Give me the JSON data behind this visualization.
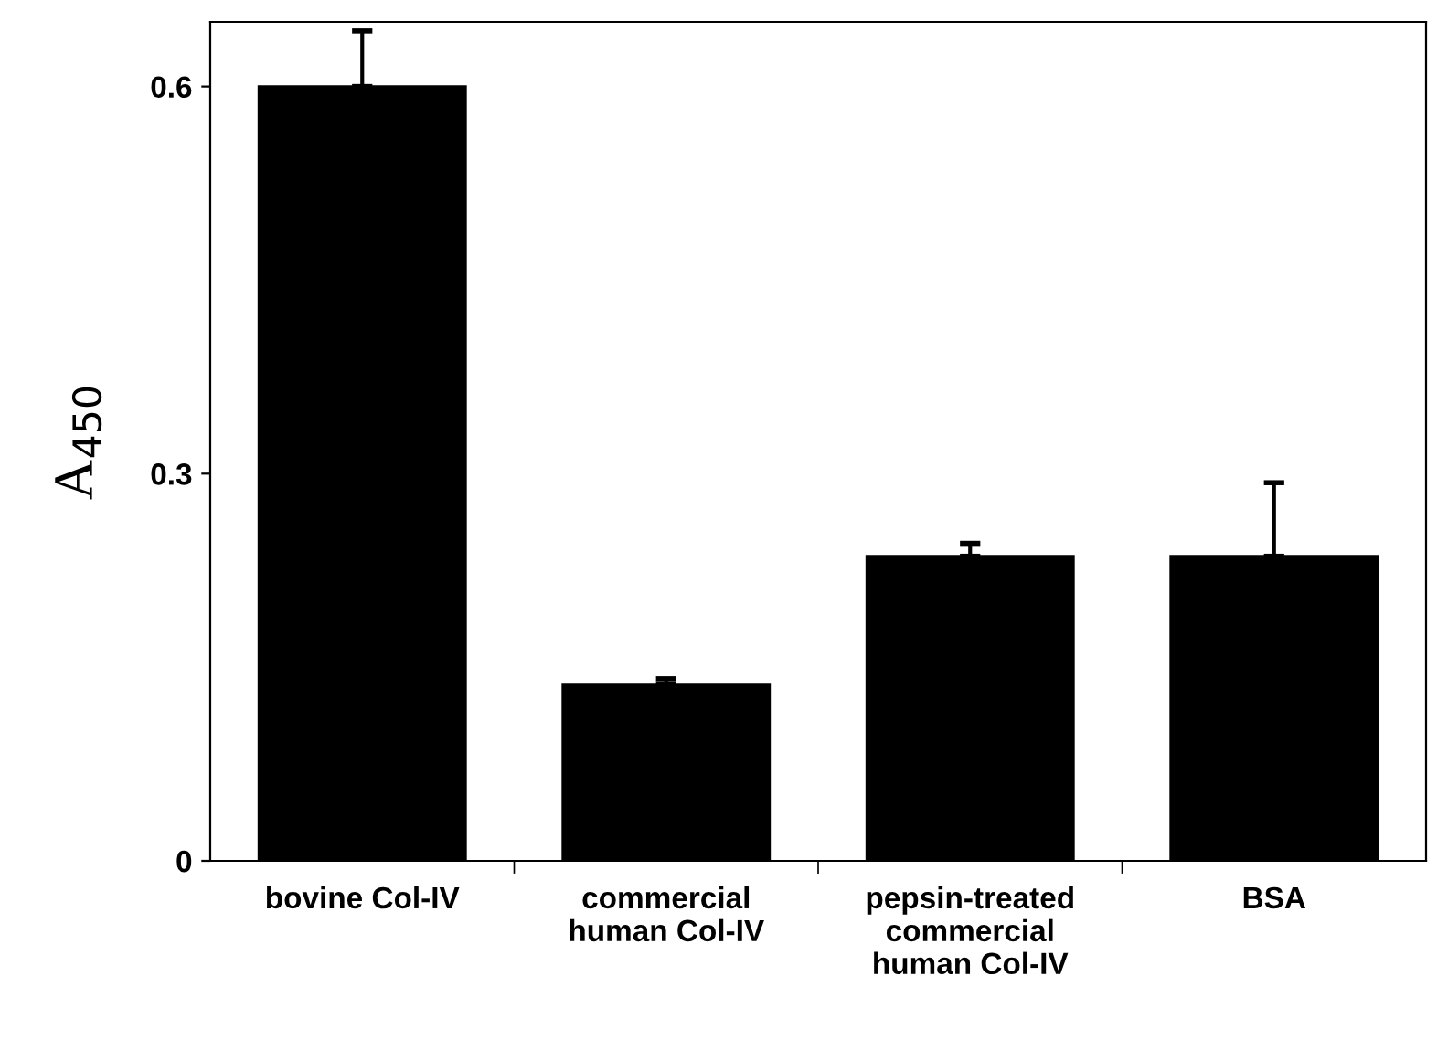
{
  "chart_data": {
    "type": "bar",
    "ylabel": "A$_{450}$",
    "categories": [
      "bovine Col-IV",
      "commercial\nhuman Col-IV",
      "pepsin-treated\ncommercial\nhuman Col-IV",
      "BSA"
    ],
    "values": [
      0.6,
      0.137,
      0.236,
      0.236
    ],
    "errors": [
      0.043,
      0.004,
      0.01,
      0.057
    ],
    "color": "#000000",
    "ylim": [
      0,
      0.65
    ],
    "yticks": [
      0,
      0.3,
      0.6
    ],
    "grid": false
  }
}
